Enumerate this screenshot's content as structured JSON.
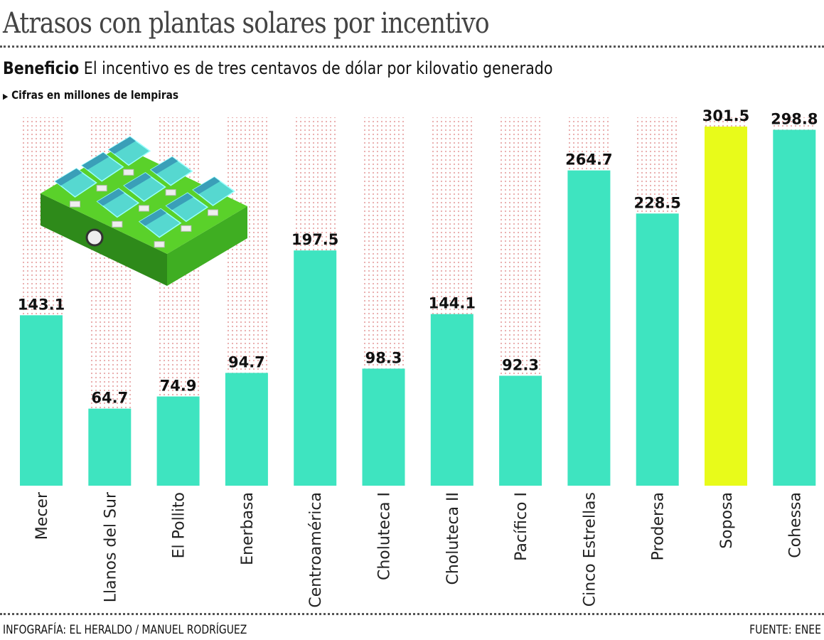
{
  "header": {
    "title": "Atrasos con plantas solares por incentivo",
    "subtitle_bold": "Beneficio",
    "subtitle": "El incentivo es de tres centavos de dólar por kilovatio generado",
    "note": "Cifras en millones de lempiras"
  },
  "footer": {
    "credit": "INFOGRAFÍA: EL HERALDO / MANUEL RODRÍGUEZ",
    "source": "FUENTE: ENEE"
  },
  "colors": {
    "bar": "#3ee4c0",
    "highlight": "#e8fb1a",
    "dots": "#e8b4b4",
    "block": "#5ad12a"
  },
  "illustration": "solar-panel-farm-icon",
  "chart_data": {
    "type": "bar",
    "title": "Atrasos con plantas solares por incentivo",
    "unit": "Cifras en millones de lempiras",
    "categories": [
      "Mecer",
      "Llanos del Sur",
      "El Pollito",
      "Enerbasa",
      "Centroamérica",
      "Choluteca I",
      "Choluteca II",
      "Pacífico I",
      "Cinco Estrellas",
      "Prodersa",
      "Soposa",
      "Cohessa"
    ],
    "values": [
      143.1,
      64.7,
      74.9,
      94.7,
      197.5,
      98.3,
      144.1,
      92.3,
      264.7,
      228.5,
      301.5,
      298.8
    ],
    "labels": [
      "143.1",
      "64.7",
      "74.9",
      "94.7",
      "197.5",
      "98.3",
      "144.1",
      "92.3",
      "264.7",
      "228.5",
      "301.5",
      "298.8"
    ],
    "highlight": "Soposa",
    "ylim": [
      0,
      310
    ],
    "grid": false,
    "axis_visible": false
  }
}
